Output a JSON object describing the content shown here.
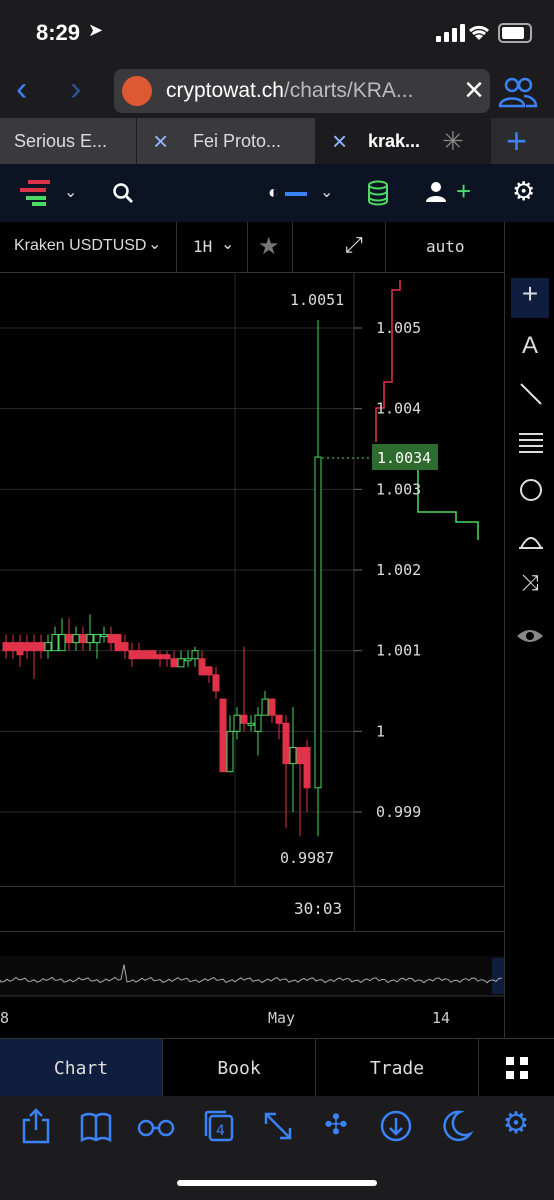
{
  "status_bar": {
    "time": "8:29"
  },
  "browser": {
    "url_domain": "cryptowat.ch",
    "url_path": "/charts/KRA...",
    "tabs": [
      {
        "label": "Serious E...",
        "active": false
      },
      {
        "label": "Fei Proto...",
        "active": false
      },
      {
        "label": "krak...",
        "active": true
      }
    ]
  },
  "toolbar": {
    "market": "Kraken USDTUSD",
    "interval": "1H",
    "scale": "auto"
  },
  "chart": {
    "high_label": "1.0051",
    "low_label": "0.9987",
    "current_price": "1.0034",
    "price_ticks": [
      "1.005",
      "1.004",
      "1.003",
      "1.002",
      "1.001",
      "1",
      "0.999"
    ],
    "timer": "30:03",
    "date_labels": [
      "8",
      "May",
      "14"
    ]
  },
  "bottom_nav": {
    "chart": "Chart",
    "book": "Book",
    "trade": "Trade"
  },
  "colors": {
    "up": "#4cd964",
    "down": "#e0334a",
    "accent": "#3a82f7",
    "price_tag": "#2e6b2e"
  }
}
